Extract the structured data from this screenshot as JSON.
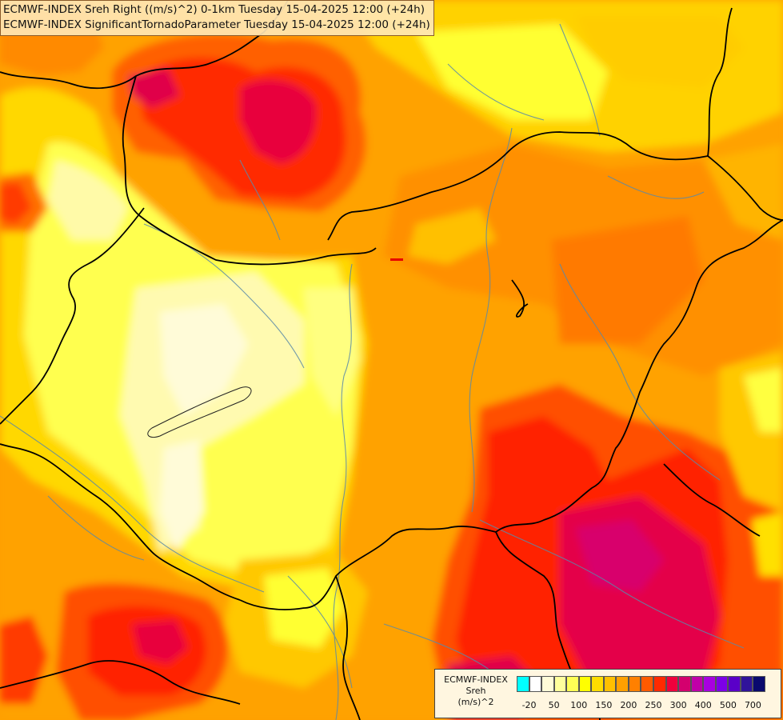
{
  "titles": {
    "line1": "ECMWF-INDEX Sreh Right ((m/s)^2) 0-1km Tuesday 15-04-2025 12:00 (+24h)",
    "line2": "ECMWF-INDEX SignificantTornadoParameter Tuesday 15-04-2025 12:00 (+24h)"
  },
  "legend": {
    "title_lines": [
      "ECMWF-INDEX",
      "Sreh",
      "(m/s)^2"
    ],
    "tick_labels": [
      "-20",
      "50",
      "100",
      "150",
      "200",
      "250",
      "300",
      "400",
      "500",
      "700"
    ],
    "swatch_colors": [
      "#00ffff",
      "#ffffff",
      "#fffbd8",
      "#ffff9c",
      "#ffff55",
      "#ffff00",
      "#ffdd00",
      "#ffc000",
      "#ffa000",
      "#ff8000",
      "#ff5a00",
      "#ff2a00",
      "#f0003c",
      "#d4006e",
      "#c000a8",
      "#a800e0",
      "#7c00e8",
      "#5a00c8",
      "#30149a",
      "#0a0a6e"
    ]
  },
  "map": {
    "background_color": "#ff9f00",
    "regions": [
      {
        "name": "North hot spot",
        "color": "#ff4a00"
      },
      {
        "name": "North core",
        "color": "#e6003c"
      },
      {
        "name": "Southeast hot spot",
        "color": "#ff2800"
      },
      {
        "name": "Southeast core",
        "color": "#e6004a"
      },
      {
        "name": "Southwest hot spot",
        "color": "#ff3a00"
      },
      {
        "name": "Central low",
        "color": "#ffff40"
      },
      {
        "name": "Central lowest",
        "color": "#fffbc8"
      }
    ]
  }
}
